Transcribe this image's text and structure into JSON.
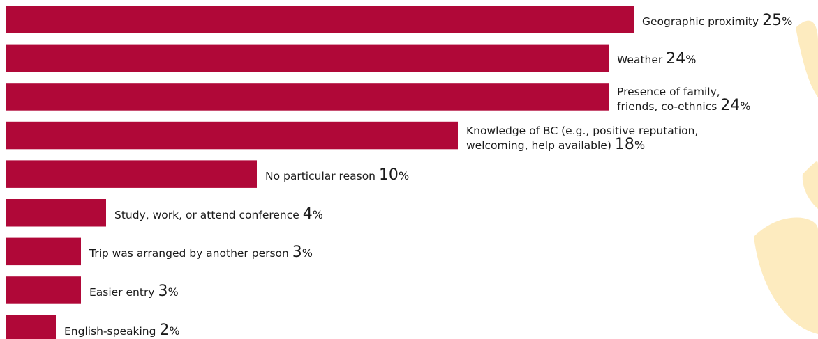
{
  "colors": {
    "bar": "#b00838",
    "decoration": "#fde9b8"
  },
  "chart_data": {
    "type": "bar",
    "orientation": "horizontal",
    "title": "",
    "xlabel": "",
    "ylabel": "",
    "xlim": [
      0,
      25
    ],
    "grid": false,
    "legend": "none",
    "unit": "%",
    "categories": [
      [
        "Geographic proximity"
      ],
      [
        "Weather"
      ],
      [
        "Presence of family,",
        "friends, co-ethnics"
      ],
      [
        "Knowledge of BC (e.g., positive reputation,",
        "welcoming, help available)"
      ],
      [
        "No particular reason"
      ],
      [
        "Study, work, or attend conference"
      ],
      [
        "Trip was arranged by another person"
      ],
      [
        "Easier entry"
      ],
      [
        "English-speaking"
      ]
    ],
    "values": [
      25,
      24,
      24,
      18,
      10,
      4,
      3,
      3,
      2
    ]
  }
}
